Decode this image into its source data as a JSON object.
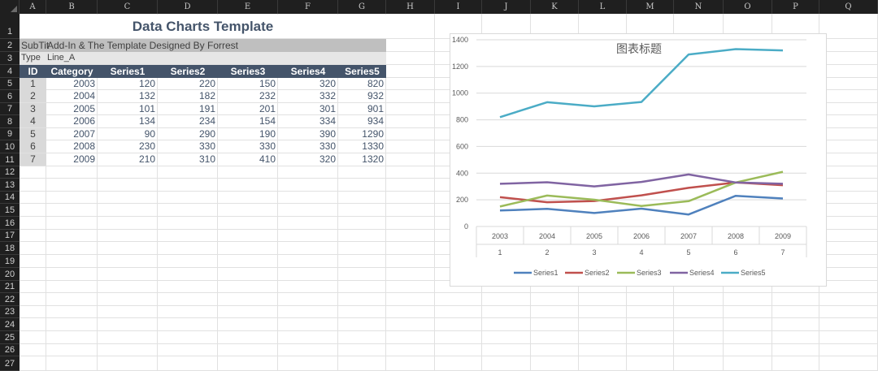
{
  "columns": [
    "A",
    "B",
    "C",
    "D",
    "E",
    "F",
    "G",
    "H",
    "I",
    "J",
    "K",
    "L",
    "M",
    "N",
    "O",
    "P",
    "Q"
  ],
  "rows": [
    "1",
    "2",
    "3",
    "4",
    "5",
    "6",
    "7",
    "8",
    "9",
    "10",
    "11",
    "12",
    "13",
    "14",
    "15",
    "16",
    "17",
    "18",
    "19",
    "20",
    "21",
    "22",
    "23",
    "24",
    "25",
    "26",
    "27"
  ],
  "title": "Data Charts Template",
  "subtitle": {
    "label": "SubTit",
    "value": "Add-In & The Template Designed By Forrest"
  },
  "type": {
    "label": "Type",
    "value": "Line_A"
  },
  "table": {
    "headers": [
      "ID",
      "Category",
      "Series1",
      "Series2",
      "Series3",
      "Series4",
      "Series5"
    ],
    "rows": [
      [
        "1",
        "2003",
        "120",
        "220",
        "150",
        "320",
        "820"
      ],
      [
        "2",
        "2004",
        "132",
        "182",
        "232",
        "332",
        "932"
      ],
      [
        "3",
        "2005",
        "101",
        "191",
        "201",
        "301",
        "901"
      ],
      [
        "4",
        "2006",
        "134",
        "234",
        "154",
        "334",
        "934"
      ],
      [
        "5",
        "2007",
        "90",
        "290",
        "190",
        "390",
        "1290"
      ],
      [
        "6",
        "2008",
        "230",
        "330",
        "330",
        "330",
        "1330"
      ],
      [
        "7",
        "2009",
        "210",
        "310",
        "410",
        "320",
        "1320"
      ]
    ]
  },
  "colors": {
    "header_bg": "#44546a",
    "sheet_header_bg": "#1f1f1f",
    "series": [
      "#4f81bd",
      "#c0504d",
      "#9bbb59",
      "#8064a2",
      "#4bacc6"
    ]
  },
  "chart_data": {
    "type": "line",
    "title": "图表标题",
    "categories": [
      "2003",
      "2004",
      "2005",
      "2006",
      "2007",
      "2008",
      "2009"
    ],
    "ids": [
      "1",
      "2",
      "3",
      "4",
      "5",
      "6",
      "7"
    ],
    "ylim": [
      0,
      1400
    ],
    "yticks": [
      0,
      200,
      400,
      600,
      800,
      1000,
      1200,
      1400
    ],
    "grid": true,
    "legend": "bottom",
    "series": [
      {
        "name": "Series1",
        "values": [
          120,
          132,
          101,
          134,
          90,
          230,
          210
        ]
      },
      {
        "name": "Series2",
        "values": [
          220,
          182,
          191,
          234,
          290,
          330,
          310
        ]
      },
      {
        "name": "Series3",
        "values": [
          150,
          232,
          201,
          154,
          190,
          330,
          410
        ]
      },
      {
        "name": "Series4",
        "values": [
          320,
          332,
          301,
          334,
          390,
          330,
          320
        ]
      },
      {
        "name": "Series5",
        "values": [
          820,
          932,
          901,
          934,
          1290,
          1330,
          1320
        ]
      }
    ]
  }
}
